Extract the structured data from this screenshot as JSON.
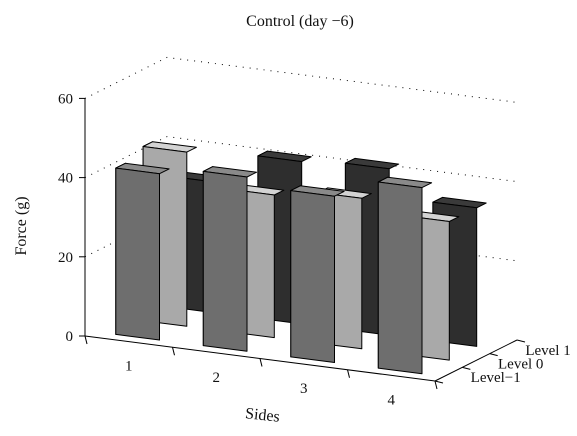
{
  "chart_data": {
    "type": "bar",
    "title": "Control (day −6)",
    "xlabel": "Sides",
    "ylabel": "Force (g)",
    "zlabel": "",
    "categories": [
      "1",
      "2",
      "3",
      "4"
    ],
    "yticks": [
      "0",
      "20",
      "40",
      "60"
    ],
    "ylim": [
      0,
      60
    ],
    "grid": true,
    "series": [
      {
        "name": "Level−1",
        "values": [
          42,
          44,
          42,
          47
        ],
        "color": "#6e6e6e"
      },
      {
        "name": "Level 0",
        "values": [
          44,
          36,
          38,
          35
        ],
        "color": "#a9a9a9"
      },
      {
        "name": "Level 1",
        "values": [
          33,
          41,
          42,
          35
        ],
        "color": "#2e2e2e"
      }
    ]
  }
}
